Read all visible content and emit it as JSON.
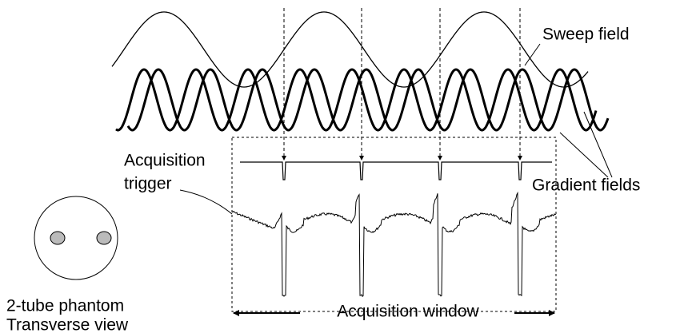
{
  "labels": {
    "sweep_field": "Sweep field",
    "gradient_fields": "Gradient fields",
    "acquisition_trigger": [
      "Acquisition",
      "trigger"
    ],
    "phantom": [
      "2-tube phantom",
      "Transverse view"
    ],
    "acquisition_window": "Acquisition window"
  }
}
